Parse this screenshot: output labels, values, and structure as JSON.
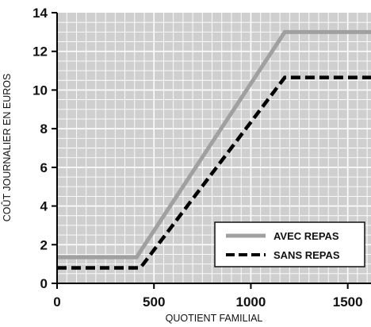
{
  "chart_data": {
    "type": "line",
    "title": "",
    "xlabel": "QUOTIENT FAMILIAL",
    "ylabel": "COÛT JOURNALIER EN EUROS",
    "xlim": [
      0,
      1620
    ],
    "ylim": [
      0,
      14
    ],
    "xticks": [
      0,
      500,
      1000,
      1500
    ],
    "yticks": [
      0,
      2,
      4,
      6,
      8,
      10,
      12,
      14
    ],
    "grid": true,
    "legend_position": "bottom-right",
    "series": [
      {
        "name": "AVEC REPAS",
        "style": "solid",
        "color": "#a0a0a0",
        "x": [
          0,
          410,
          1175,
          1620
        ],
        "y": [
          1.35,
          1.35,
          13.0,
          13.0
        ]
      },
      {
        "name": "SANS REPAS",
        "style": "dashed",
        "color": "#000000",
        "x": [
          0,
          430,
          1175,
          1620
        ],
        "y": [
          0.8,
          0.8,
          10.65,
          10.65
        ]
      }
    ]
  }
}
